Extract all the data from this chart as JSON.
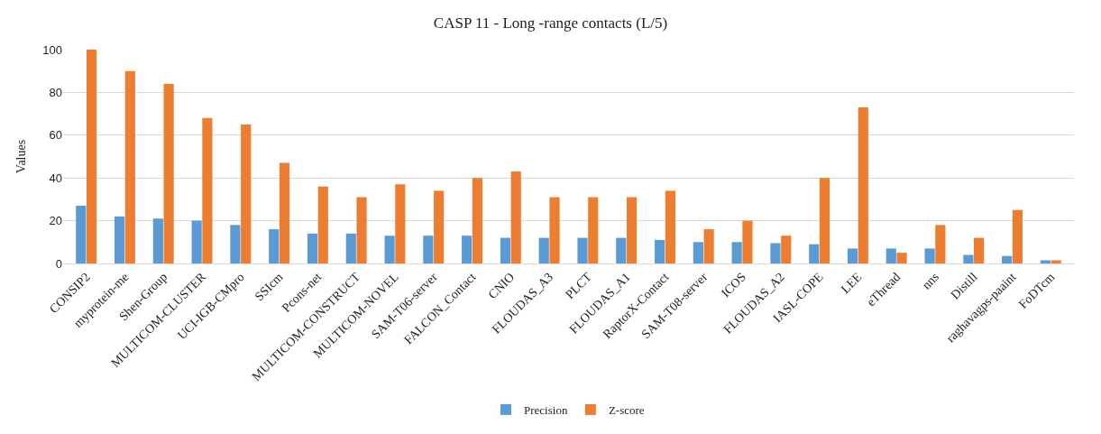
{
  "chart_data": {
    "type": "bar",
    "title": "CASP 11 - Long -range contacts (L/5)",
    "ylabel": "Values",
    "categories": [
      "CONSIP2",
      "myprotein-me",
      "Shen-Group",
      "MULTICOM-CLUSTER",
      "UCI-IGB-CMpro",
      "SSIcm",
      "Pcons-net",
      "MULTICOM-CONSTRUCT",
      "MULTICOM-NOVEL",
      "SAM-T06-server",
      "FALCON_Contact",
      "CNIO",
      "FLOUDAS_A3",
      "PLCT",
      "FLOUDAS_A1",
      "RaptorX-Contact",
      "SAM-T08-server",
      "ICOS",
      "FLOUDAS_A2",
      "IASL-COPE",
      "LEE",
      "eThread",
      "nns",
      "Distill",
      "raghavagps-paaint",
      "FoDTcm"
    ],
    "series": [
      {
        "name": "Precision",
        "color": "#5b9bd5",
        "values": [
          27,
          22,
          21,
          20,
          18,
          16,
          14,
          14,
          13,
          13,
          13,
          12,
          12,
          12,
          12,
          11,
          10,
          10,
          9.5,
          9,
          7,
          7,
          7,
          4,
          3.5,
          1.5
        ]
      },
      {
        "name": "Z-score",
        "color": "#ed7d31",
        "values": [
          100,
          90,
          84,
          68,
          65,
          47,
          36,
          31,
          37,
          34,
          40,
          43,
          31,
          31,
          31,
          34,
          16,
          20,
          13,
          40,
          73,
          5,
          18,
          12,
          25,
          1.5
        ]
      }
    ],
    "ylim": [
      0,
      100
    ],
    "yticks": [
      0,
      20,
      40,
      60,
      80,
      100
    ],
    "grid": "y",
    "legend": "bottom"
  }
}
